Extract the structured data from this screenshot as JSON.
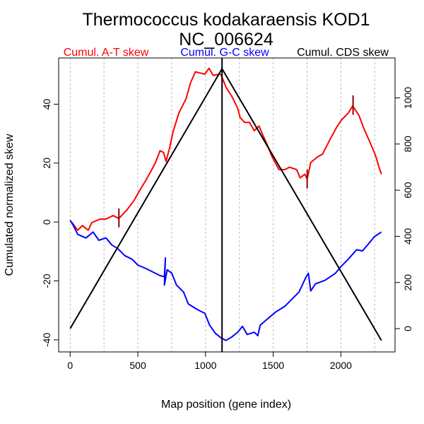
{
  "chart_data": {
    "type": "line",
    "title": "Thermococcus kodakaraensis KOD1",
    "subtitle": "NC_006624",
    "xlabel": "Map position (gene index)",
    "ylabel": "Cumulated normalized skew",
    "xlim": [
      -85,
      2400
    ],
    "ylim": [
      -44.1,
      55.7
    ],
    "y2lim": [
      -101,
      1173
    ],
    "xticks": [
      0,
      500,
      1000,
      1500,
      2000
    ],
    "yticks": [
      -40,
      -20,
      0,
      20,
      40
    ],
    "y2ticks": [
      0,
      200,
      400,
      600,
      800,
      1000
    ],
    "xgrid": [
      0,
      250,
      500,
      750,
      1000,
      1250,
      1500,
      1750,
      2000,
      2250
    ],
    "legend": [
      {
        "label": "Cumul. A-T skew",
        "color": "#ff0000"
      },
      {
        "label": "Cumul. G-C skew",
        "color": "#0000ff"
      },
      {
        "label": "Cumul. CDS skew",
        "color": "#000000"
      }
    ],
    "series": [
      {
        "name": "Cumul. A-T skew",
        "color": "#ff0000",
        "axis": "left",
        "x": [
          0,
          21,
          56,
          90,
          134,
          160,
          221,
          264,
          317,
          360,
          421,
          473,
          517,
          560,
          603,
          630,
          664,
          690,
          708,
          734,
          760,
          803,
          856,
          890,
          925,
          960,
          995,
          1026,
          1056,
          1108,
          1116,
          1151,
          1195,
          1238,
          1256,
          1290,
          1325,
          1360,
          1395,
          1421,
          1456,
          1491,
          1543,
          1586,
          1620,
          1673,
          1699,
          1734,
          1751,
          1777,
          1830,
          1864,
          1917,
          1969,
          2003,
          2055,
          2087,
          2134,
          2169,
          2212,
          2256,
          2282,
          2299
        ],
        "y": [
          0.4,
          -0.6,
          -2.8,
          -1.2,
          -2.8,
          -0.2,
          1,
          1,
          2.2,
          1.2,
          4.2,
          7.4,
          11,
          14.2,
          17.8,
          20.2,
          24.2,
          23.6,
          20.6,
          25,
          30.6,
          37,
          41.8,
          47.4,
          51,
          50.6,
          50.2,
          52.2,
          49.8,
          50.2,
          49.8,
          45.8,
          42.6,
          38.6,
          35.4,
          33.8,
          33.8,
          31,
          32.6,
          29.8,
          26.2,
          22.2,
          17.8,
          17.8,
          18.6,
          17.8,
          15,
          16.2,
          14.6,
          20.2,
          22.2,
          23,
          27.8,
          32.2,
          34.6,
          37,
          39.4,
          36.2,
          31.8,
          27.4,
          22.6,
          18.6,
          16.2
        ]
      },
      {
        "name": "Cumul. G-C skew",
        "color": "#0000ff",
        "axis": "left",
        "x": [
          0,
          21,
          56,
          117,
          169,
          212,
          264,
          308,
          351,
          403,
          456,
          499,
          560,
          612,
          664,
          696,
          704,
          696,
          717,
          751,
          786,
          838,
          873,
          943,
          995,
          1030,
          1073,
          1116,
          1151,
          1195,
          1238,
          1273,
          1308,
          1360,
          1386,
          1404,
          1465,
          1517,
          1586,
          1638,
          1690,
          1743,
          1760,
          1777,
          1812,
          1882,
          1960,
          2003,
          2055,
          2116,
          2160,
          2204,
          2247,
          2299
        ],
        "y": [
          0.6,
          -1,
          -4.2,
          -5.4,
          -3.4,
          -6.2,
          -5.4,
          -7.8,
          -9,
          -11.4,
          -12.6,
          -14.6,
          -15.8,
          -17,
          -18.2,
          -18.6,
          -12.2,
          -21.4,
          -16.2,
          -17.4,
          -21.4,
          -23.8,
          -27.8,
          -29.8,
          -31,
          -35,
          -37.8,
          -39.4,
          -40.2,
          -39,
          -37.4,
          -35.4,
          -38.2,
          -37.4,
          -38.6,
          -35,
          -32.6,
          -30.6,
          -28.6,
          -26.2,
          -23.8,
          -18.6,
          -17.4,
          -23.4,
          -21,
          -19.8,
          -17.4,
          -15,
          -12.6,
          -9.4,
          -9.8,
          -7.4,
          -5,
          -3.4
        ]
      },
      {
        "name": "Cumul. CDS skew",
        "color": "#000000",
        "axis": "right",
        "x": [
          0,
          1122,
          2299
        ],
        "y": [
          0,
          1126,
          -51
        ]
      }
    ],
    "markers": [
      {
        "x": 360,
        "y": [
          -1.8,
          4.6
        ],
        "color": "#8b0000"
      },
      {
        "x": 1751,
        "y": [
          11.4,
          17.8
        ],
        "color": "#8b0000"
      },
      {
        "x": 2090,
        "y": [
          36.4,
          43
        ],
        "color": "#8b0000"
      }
    ],
    "vline": {
      "x": 1122,
      "color": "#000000"
    }
  }
}
